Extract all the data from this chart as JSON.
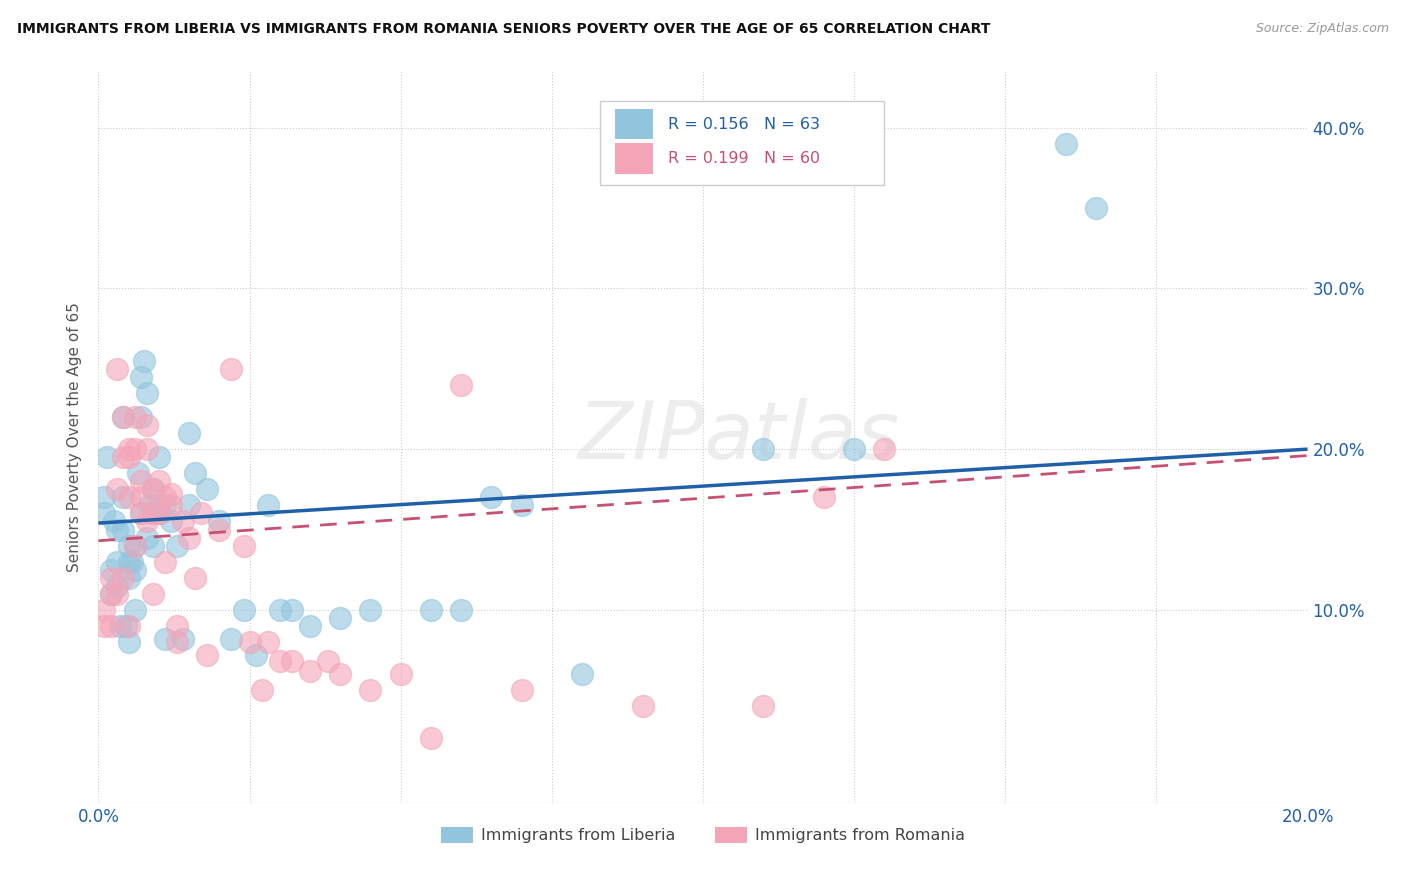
{
  "title": "IMMIGRANTS FROM LIBERIA VS IMMIGRANTS FROM ROMANIA SENIORS POVERTY OVER THE AGE OF 65 CORRELATION CHART",
  "source": "Source: ZipAtlas.com",
  "ylabel": "Seniors Poverty Over the Age of 65",
  "y_ticks": [
    0.1,
    0.2,
    0.3,
    0.4
  ],
  "y_tick_labels": [
    "10.0%",
    "20.0%",
    "30.0%",
    "40.0%"
  ],
  "x_min": 0.0,
  "x_max": 0.2,
  "y_min": -0.02,
  "y_max": 0.435,
  "liberia_R": "0.156",
  "liberia_N": "63",
  "romania_R": "0.199",
  "romania_N": "60",
  "liberia_color": "#92C5DE",
  "romania_color": "#F4A5B8",
  "liberia_line_color": "#2060A8",
  "romania_line_color": "#C85070",
  "watermark_text": "ZIPatlas",
  "legend_label_liberia": "Immigrants from Liberia",
  "legend_label_romania": "Immigrants from Romania",
  "liberia_x": [
    0.001,
    0.001,
    0.0015,
    0.002,
    0.002,
    0.0025,
    0.003,
    0.003,
    0.003,
    0.0035,
    0.004,
    0.004,
    0.004,
    0.0045,
    0.005,
    0.005,
    0.005,
    0.005,
    0.0055,
    0.006,
    0.006,
    0.006,
    0.0065,
    0.007,
    0.007,
    0.007,
    0.0075,
    0.008,
    0.008,
    0.0085,
    0.009,
    0.009,
    0.009,
    0.01,
    0.01,
    0.011,
    0.011,
    0.012,
    0.013,
    0.014,
    0.015,
    0.015,
    0.016,
    0.018,
    0.02,
    0.022,
    0.024,
    0.026,
    0.028,
    0.03,
    0.032,
    0.035,
    0.04,
    0.045,
    0.055,
    0.06,
    0.065,
    0.07,
    0.08,
    0.11,
    0.125,
    0.16,
    0.165
  ],
  "liberia_y": [
    0.17,
    0.16,
    0.195,
    0.125,
    0.11,
    0.155,
    0.15,
    0.13,
    0.115,
    0.09,
    0.22,
    0.17,
    0.15,
    0.09,
    0.14,
    0.13,
    0.12,
    0.08,
    0.13,
    0.14,
    0.125,
    0.1,
    0.185,
    0.245,
    0.22,
    0.16,
    0.255,
    0.235,
    0.145,
    0.165,
    0.175,
    0.16,
    0.14,
    0.195,
    0.16,
    0.165,
    0.082,
    0.155,
    0.14,
    0.082,
    0.21,
    0.165,
    0.185,
    0.175,
    0.155,
    0.082,
    0.1,
    0.072,
    0.165,
    0.1,
    0.1,
    0.09,
    0.095,
    0.1,
    0.1,
    0.1,
    0.17,
    0.165,
    0.06,
    0.2,
    0.2,
    0.39,
    0.35
  ],
  "romania_x": [
    0.001,
    0.001,
    0.002,
    0.002,
    0.002,
    0.003,
    0.003,
    0.003,
    0.004,
    0.004,
    0.004,
    0.005,
    0.005,
    0.005,
    0.005,
    0.006,
    0.006,
    0.006,
    0.007,
    0.007,
    0.007,
    0.008,
    0.008,
    0.008,
    0.009,
    0.009,
    0.009,
    0.01,
    0.01,
    0.011,
    0.011,
    0.012,
    0.012,
    0.013,
    0.013,
    0.014,
    0.015,
    0.016,
    0.017,
    0.018,
    0.02,
    0.022,
    0.024,
    0.025,
    0.027,
    0.028,
    0.03,
    0.032,
    0.035,
    0.038,
    0.04,
    0.045,
    0.05,
    0.055,
    0.06,
    0.07,
    0.09,
    0.11,
    0.12,
    0.13
  ],
  "romania_y": [
    0.1,
    0.09,
    0.12,
    0.11,
    0.09,
    0.25,
    0.175,
    0.11,
    0.22,
    0.195,
    0.12,
    0.2,
    0.195,
    0.17,
    0.09,
    0.22,
    0.2,
    0.14,
    0.18,
    0.17,
    0.16,
    0.215,
    0.2,
    0.155,
    0.175,
    0.16,
    0.11,
    0.18,
    0.16,
    0.17,
    0.13,
    0.172,
    0.165,
    0.09,
    0.08,
    0.155,
    0.145,
    0.12,
    0.16,
    0.072,
    0.15,
    0.25,
    0.14,
    0.08,
    0.05,
    0.08,
    0.068,
    0.068,
    0.062,
    0.068,
    0.06,
    0.05,
    0.06,
    0.02,
    0.24,
    0.05,
    0.04,
    0.04,
    0.17,
    0.2
  ],
  "liberia_line_y0": 0.154,
  "liberia_line_y1": 0.2,
  "romania_line_y0": 0.143,
  "romania_line_y1": 0.196
}
